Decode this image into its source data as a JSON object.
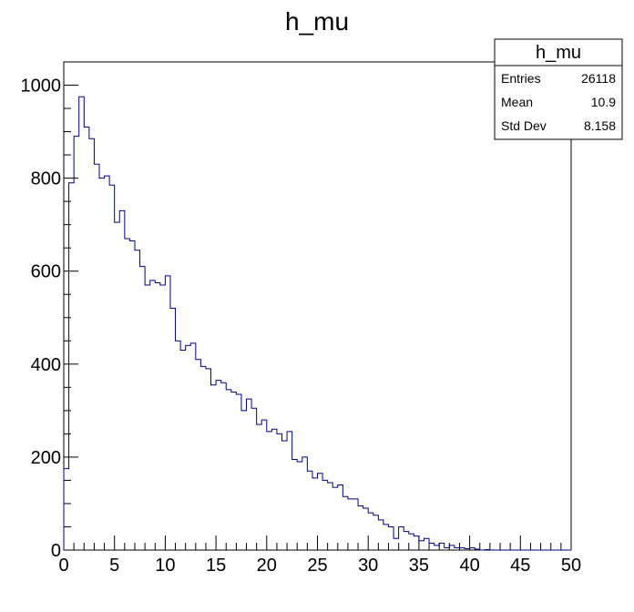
{
  "chart_data": {
    "type": "histogram",
    "title": "h_mu",
    "xlabel": "",
    "ylabel": "",
    "xlim": [
      0,
      50
    ],
    "ylim": [
      0,
      1050
    ],
    "bin_width": 0.5,
    "line_color": "#000080",
    "grid": false,
    "legend": "none",
    "x_ticks": [
      "0",
      "5",
      "10",
      "15",
      "20",
      "25",
      "30",
      "35",
      "40",
      "45",
      "50"
    ],
    "y_ticks": [
      "0",
      "200",
      "400",
      "600",
      "800",
      "1000"
    ],
    "bin_values": [
      175,
      790,
      890,
      975,
      910,
      885,
      830,
      800,
      805,
      785,
      705,
      730,
      670,
      665,
      645,
      610,
      570,
      580,
      575,
      570,
      590,
      520,
      450,
      430,
      440,
      445,
      410,
      395,
      390,
      355,
      365,
      360,
      345,
      340,
      335,
      300,
      325,
      305,
      270,
      280,
      255,
      260,
      250,
      235,
      255,
      195,
      190,
      200,
      170,
      155,
      165,
      150,
      145,
      135,
      140,
      115,
      110,
      110,
      95,
      90,
      80,
      75,
      65,
      55,
      50,
      25,
      50,
      40,
      35,
      30,
      20,
      25,
      15,
      10,
      15,
      5,
      10,
      5,
      5,
      3,
      5,
      2,
      0,
      1,
      0,
      0,
      0,
      0,
      0,
      0,
      0,
      0,
      0,
      0,
      0,
      0,
      0,
      0,
      0,
      0
    ],
    "stats_box": {
      "title": "h_mu",
      "rows": [
        {
          "label": "Entries",
          "value": "26118"
        },
        {
          "label": "Mean",
          "value": "10.9"
        },
        {
          "label": "Std Dev",
          "value": "8.158"
        }
      ]
    }
  }
}
